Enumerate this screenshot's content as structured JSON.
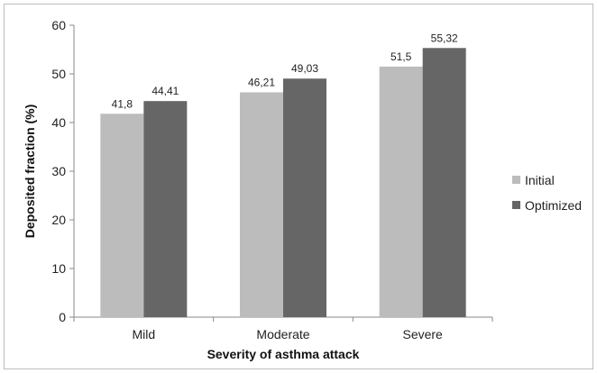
{
  "chart_data": {
    "type": "bar",
    "title": "",
    "xlabel": "Severity of asthma attack",
    "ylabel": "Deposited fraction (%)",
    "categories": [
      "Mild",
      "Moderate",
      "Severe"
    ],
    "series": [
      {
        "name": "Initial",
        "values": [
          41.8,
          46.21,
          51.5
        ],
        "labels": [
          "41,8",
          "46,21",
          "51,5"
        ],
        "color": "#bcbcbc"
      },
      {
        "name": "Optimized",
        "values": [
          44.41,
          49.03,
          55.32
        ],
        "labels": [
          "44,41",
          "49,03",
          "55,32"
        ],
        "color": "#666666"
      }
    ],
    "ylim": [
      0,
      60
    ],
    "yticks": [
      0,
      10,
      20,
      30,
      40,
      50,
      60
    ],
    "grid": false,
    "legend": "right"
  }
}
